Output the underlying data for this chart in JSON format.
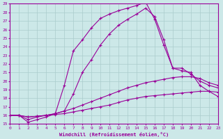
{
  "xlabel": "Windchill (Refroidissement éolien,°C)",
  "ylabel": "",
  "xlim": [
    0,
    23
  ],
  "ylim": [
    15,
    29
  ],
  "yticks": [
    15,
    16,
    17,
    18,
    19,
    20,
    21,
    22,
    23,
    24,
    25,
    26,
    27,
    28,
    29
  ],
  "xticks": [
    0,
    1,
    2,
    3,
    4,
    5,
    6,
    7,
    8,
    9,
    10,
    11,
    12,
    13,
    14,
    15,
    16,
    17,
    18,
    19,
    20,
    21,
    22,
    23
  ],
  "bg_color": "#cce8e8",
  "line_color": "#990099",
  "grid_color": "#aacccc",
  "curve1_x": [
    0,
    1,
    2,
    3,
    4,
    5,
    6,
    7,
    8,
    9,
    10,
    11,
    12,
    13,
    14,
    15,
    16,
    17,
    18,
    19,
    20,
    21,
    22,
    23
  ],
  "curve1_y": [
    16.0,
    16.0,
    15.2,
    15.5,
    15.8,
    16.2,
    19.5,
    23.5,
    24.8,
    26.2,
    27.3,
    27.8,
    28.2,
    28.5,
    28.8,
    29.2,
    27.2,
    24.2,
    21.5,
    21.2,
    21.0,
    19.5,
    18.8,
    18.2
  ],
  "curve2_x": [
    0,
    1,
    2,
    3,
    4,
    5,
    6,
    7,
    8,
    9,
    10,
    11,
    12,
    13,
    14,
    15,
    16,
    17,
    18,
    19,
    20,
    21,
    22,
    23
  ],
  "curve2_y": [
    16.0,
    16.0,
    15.5,
    15.8,
    16.0,
    16.2,
    16.5,
    18.5,
    21.0,
    22.5,
    24.2,
    25.5,
    26.5,
    27.2,
    27.8,
    28.5,
    27.5,
    24.8,
    21.5,
    21.5,
    20.8,
    20.0,
    19.5,
    19.2
  ],
  "curve3_x": [
    0,
    1,
    2,
    3,
    4,
    5,
    6,
    7,
    8,
    9,
    10,
    11,
    12,
    13,
    14,
    15,
    16,
    17,
    18,
    19,
    20,
    21,
    22,
    23
  ],
  "curve3_y": [
    16.0,
    16.0,
    15.8,
    15.9,
    16.0,
    16.2,
    16.5,
    16.8,
    17.2,
    17.6,
    18.0,
    18.4,
    18.8,
    19.2,
    19.5,
    19.8,
    20.0,
    20.2,
    20.4,
    20.5,
    20.5,
    20.3,
    19.8,
    19.5
  ],
  "curve4_x": [
    0,
    1,
    2,
    3,
    4,
    5,
    6,
    7,
    8,
    9,
    10,
    11,
    12,
    13,
    14,
    15,
    16,
    17,
    18,
    19,
    20,
    21,
    22,
    23
  ],
  "curve4_y": [
    16.0,
    16.0,
    15.8,
    15.9,
    16.0,
    16.1,
    16.2,
    16.4,
    16.6,
    16.8,
    17.0,
    17.2,
    17.5,
    17.8,
    18.0,
    18.2,
    18.3,
    18.4,
    18.5,
    18.6,
    18.7,
    18.8,
    18.8,
    18.7
  ]
}
